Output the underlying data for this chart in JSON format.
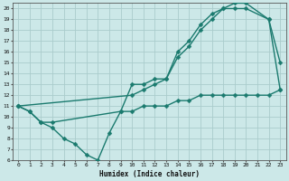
{
  "xlabel": "Humidex (Indice chaleur)",
  "bg_color": "#cce8e8",
  "grid_color": "#aacccc",
  "line_color": "#1a7a6e",
  "xlim": [
    -0.5,
    23.5
  ],
  "ylim": [
    6,
    20.5
  ],
  "xticks": [
    0,
    1,
    2,
    3,
    4,
    5,
    6,
    7,
    8,
    9,
    10,
    11,
    12,
    13,
    14,
    15,
    16,
    17,
    18,
    19,
    20,
    21,
    22,
    23
  ],
  "yticks": [
    6,
    7,
    8,
    9,
    10,
    11,
    12,
    13,
    14,
    15,
    16,
    17,
    18,
    19,
    20
  ],
  "line1_x": [
    0,
    1,
    2,
    3,
    9,
    10,
    11,
    12,
    13,
    14,
    15,
    16,
    17,
    18,
    19,
    20,
    22,
    23
  ],
  "line1_y": [
    11,
    10.5,
    9.5,
    9.5,
    10.5,
    13,
    13,
    13.5,
    13.5,
    16,
    17,
    18.5,
    19.5,
    20,
    20,
    20,
    19,
    15
  ],
  "line2_x": [
    0,
    10,
    11,
    12,
    13,
    14,
    15,
    16,
    17,
    18,
    19,
    20,
    22,
    23
  ],
  "line2_y": [
    11,
    12,
    12.5,
    13,
    13.5,
    15.5,
    16.5,
    18,
    19,
    20,
    20.5,
    20.5,
    19,
    12.5
  ],
  "line3_x": [
    0,
    1,
    2,
    3,
    4,
    5,
    6,
    7,
    8,
    9,
    10,
    11,
    12,
    13,
    14,
    15,
    16,
    17,
    18,
    19,
    20,
    21,
    22,
    23
  ],
  "line3_y": [
    11,
    10.5,
    9.5,
    9,
    8,
    7.5,
    6.5,
    6,
    8.5,
    10.5,
    10.5,
    11,
    11,
    11,
    11.5,
    11.5,
    12,
    12,
    12,
    12,
    12,
    12,
    12,
    12.5
  ]
}
